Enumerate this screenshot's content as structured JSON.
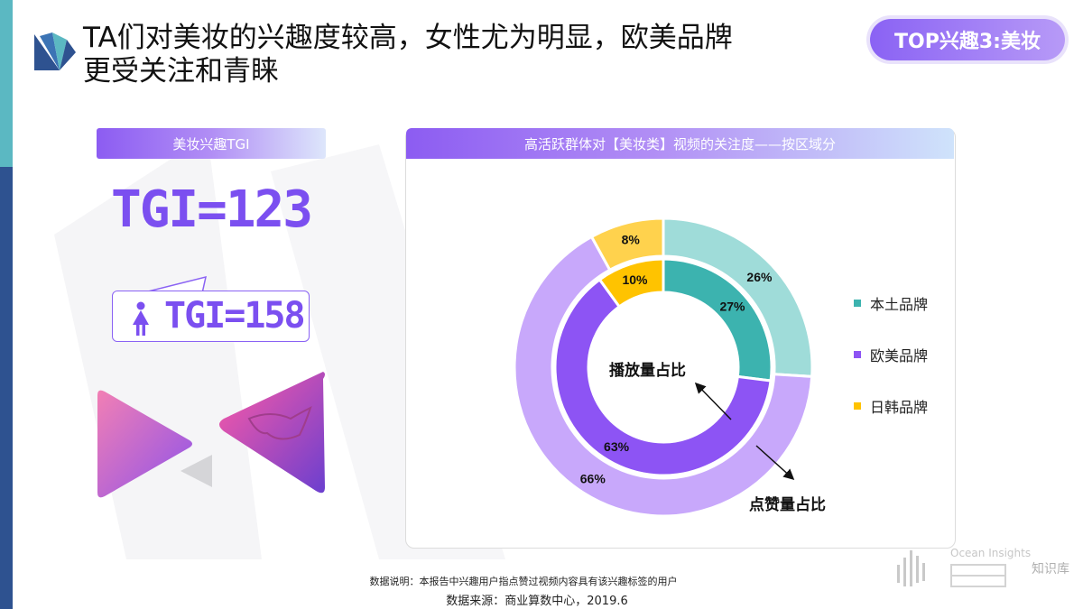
{
  "header": {
    "title_line1": "TA们对美妆的兴趣度较高，女性尤为明显，欧美品牌",
    "title_line2": "更受关注和青睐",
    "badge": "TOP兴趣3:美妆"
  },
  "left_panel": {
    "header": "美妆兴趣TGI",
    "tgi_overall": "TGI=123",
    "tgi_female": "TGI=158"
  },
  "chart_panel": {
    "header": "高活跃群体对【美妆类】视频的关注度——按区域分"
  },
  "chart_data": {
    "type": "pie",
    "subtype": "nested-donut",
    "categories": [
      "本土品牌",
      "欧美品牌",
      "日韩品牌"
    ],
    "series": [
      {
        "name": "播放量占比",
        "ring": "inner",
        "values": [
          27,
          63,
          10
        ],
        "labels": [
          "27%",
          "63%",
          "10%"
        ]
      },
      {
        "name": "点赞量占比",
        "ring": "outer",
        "values": [
          26,
          66,
          8
        ],
        "labels": [
          "26%",
          "66%",
          "8%"
        ]
      }
    ],
    "colors": {
      "inner": [
        "#3cb3af",
        "#8d54f4",
        "#ffc300"
      ],
      "outer": [
        "#9fdcd9",
        "#c8a8fb",
        "#ffd24d"
      ]
    },
    "legend": {
      "position": "right",
      "items": [
        {
          "label": "本土品牌",
          "color": "#3cb3af"
        },
        {
          "label": "欧美品牌",
          "color": "#8d54f4"
        },
        {
          "label": "日韩品牌",
          "color": "#ffc300"
        }
      ]
    }
  },
  "footer": {
    "note": "数据说明：本报告中兴趣用户指点赞过视频内容具有该兴趣标签的用户",
    "source": "数据来源：商业算数中心，2019.6"
  },
  "watermark": {
    "brand": "Ocean Insights",
    "site": "知识库"
  },
  "colors": {
    "accent": "#8a62f4",
    "tgi_text": "#7b4ff0",
    "strip_top": "#5bb8c2",
    "strip_bottom": "#2e5290"
  }
}
